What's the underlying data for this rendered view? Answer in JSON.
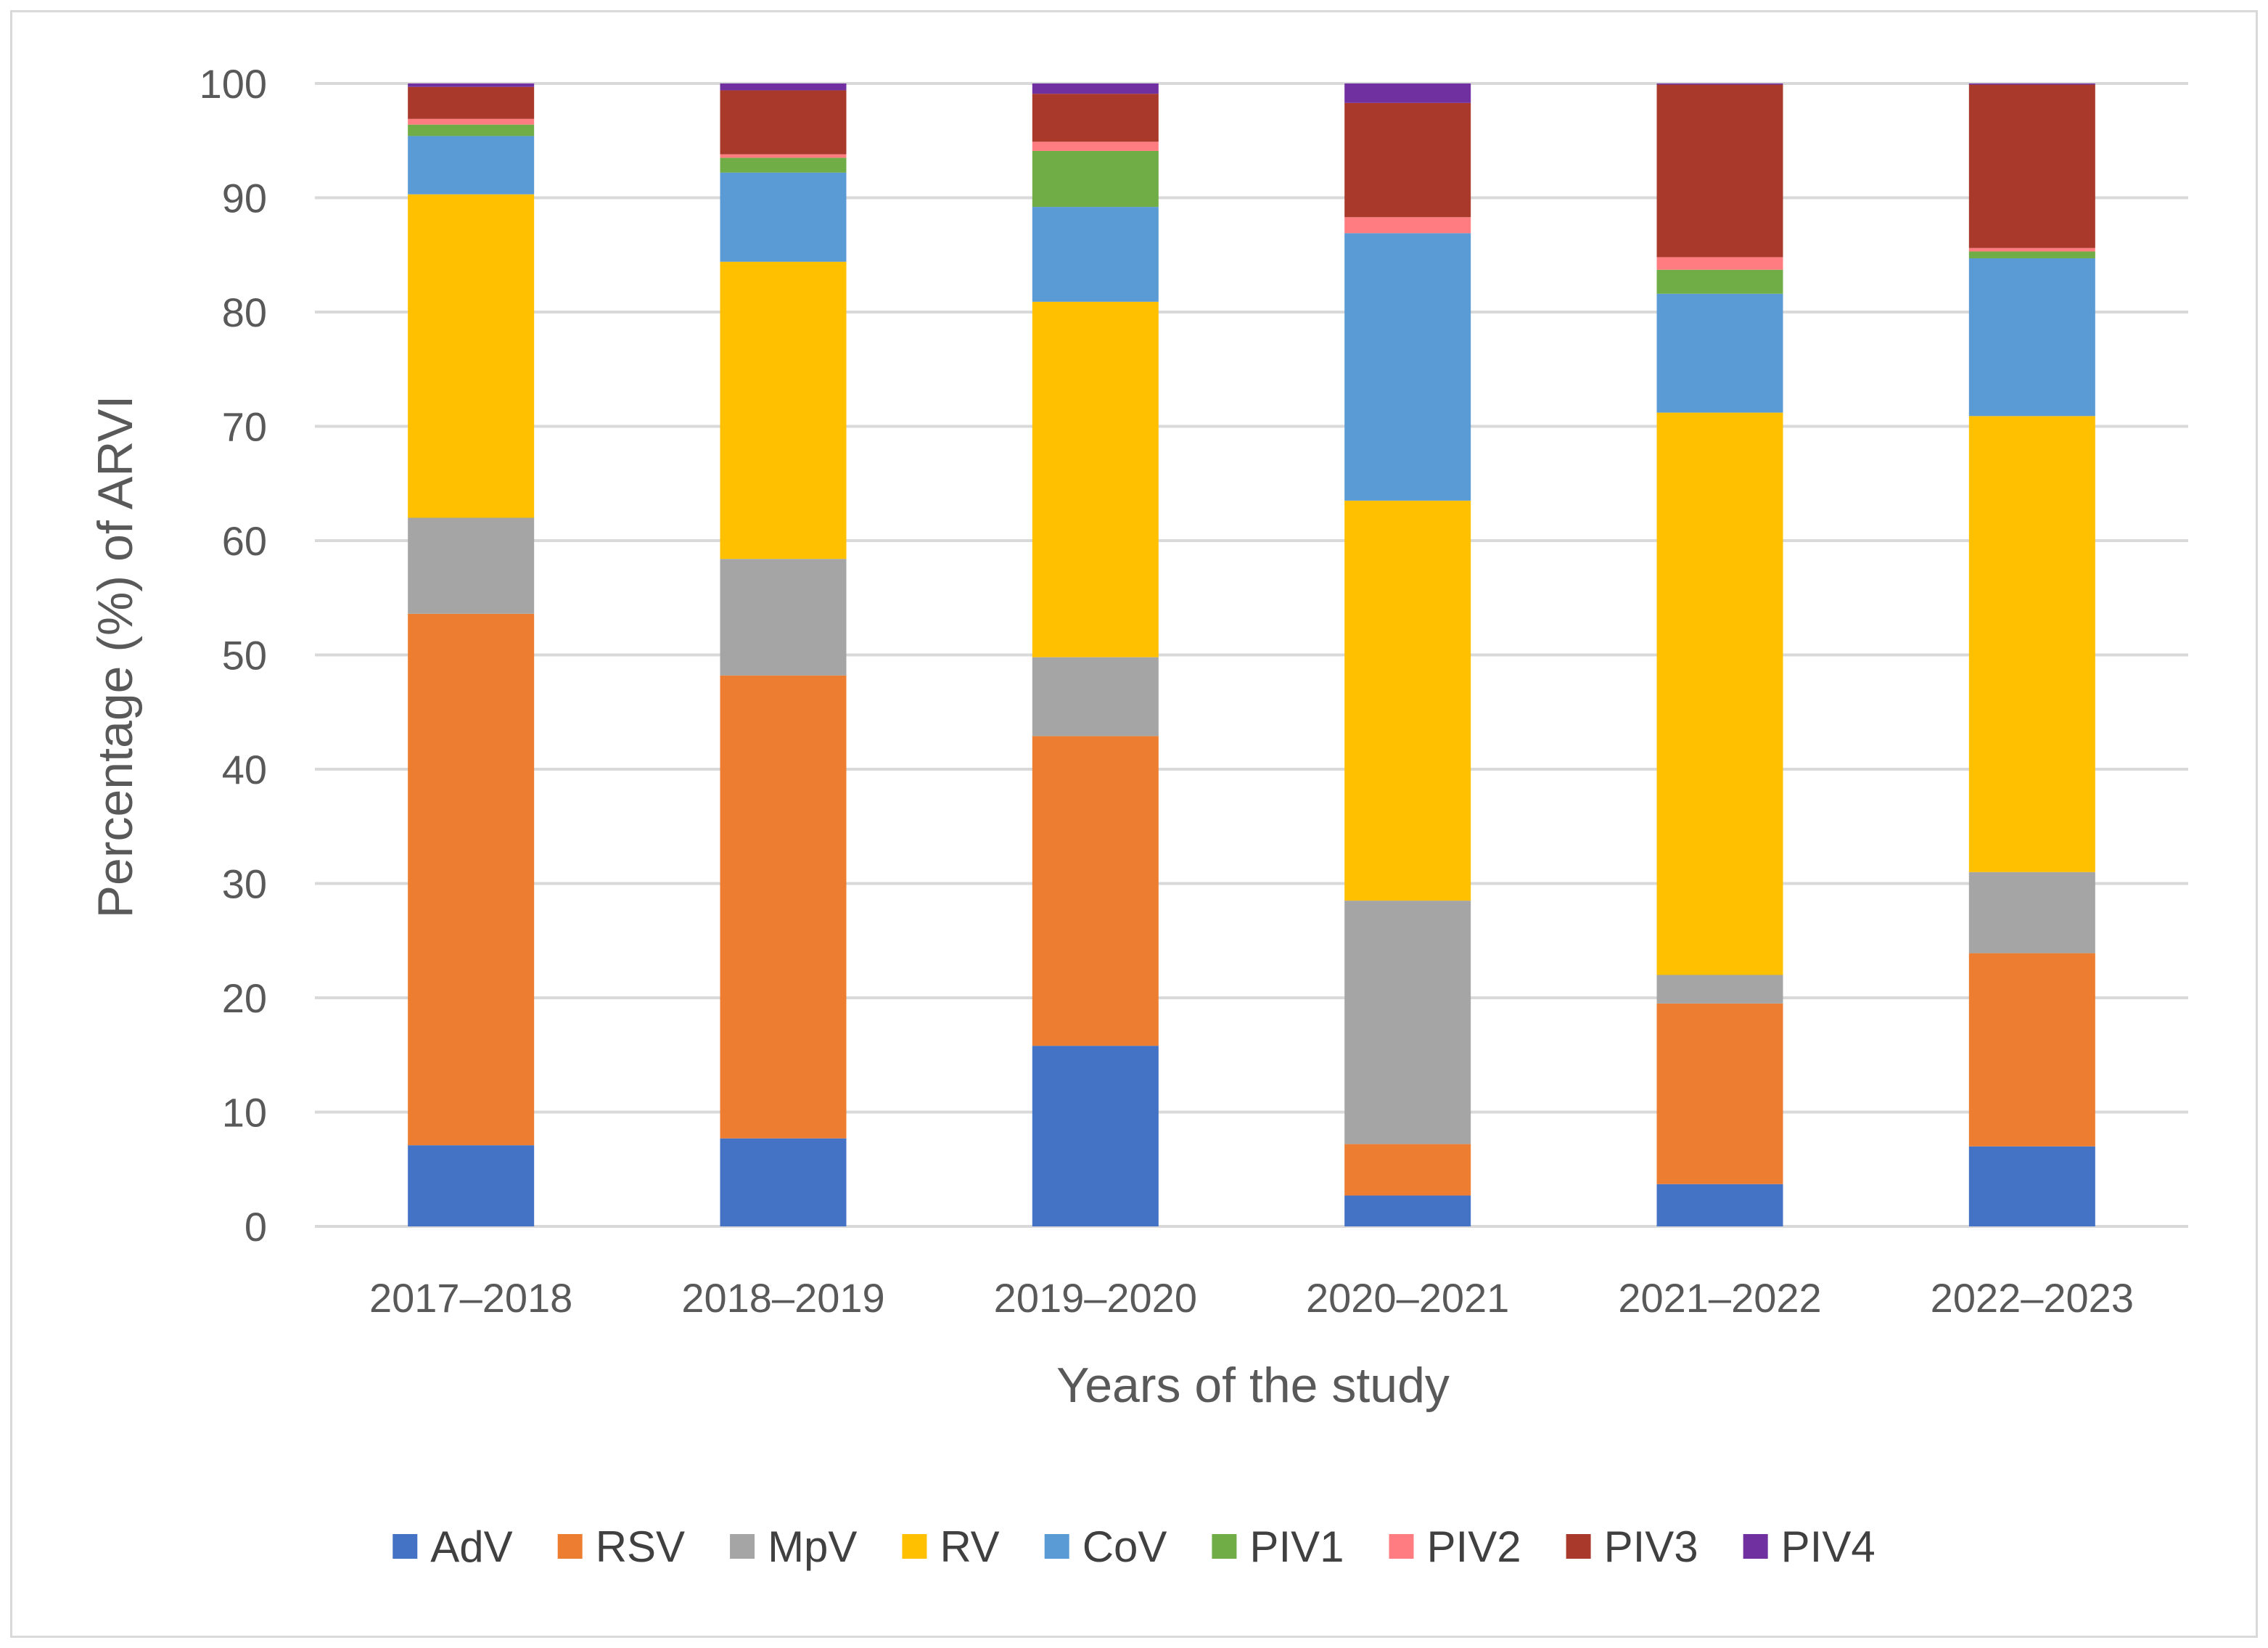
{
  "chart_data": {
    "type": "bar",
    "stacked": true,
    "title": "",
    "xlabel": "Years of the study",
    "ylabel": "Percentage (%) of ARVI",
    "ylim": [
      0,
      100
    ],
    "yticks": [
      0,
      10,
      20,
      30,
      40,
      50,
      60,
      70,
      80,
      90,
      100
    ],
    "yticks_text": [
      "0",
      "10",
      "20",
      "30",
      "40",
      "50",
      "60",
      "70",
      "80",
      "90",
      "100"
    ],
    "grid": true,
    "legend_position": "bottom",
    "categories": [
      "2017–2018",
      "2018–2019",
      "2019–2020",
      "2020–2021",
      "2021–2022",
      "2022–2023"
    ],
    "series": [
      {
        "name": "AdV",
        "color": "#4472C4",
        "values": [
          7.1,
          7.7,
          15.8,
          2.7,
          3.7,
          7.0
        ]
      },
      {
        "name": "RSV",
        "color": "#ED7D31",
        "values": [
          46.5,
          40.5,
          27.1,
          4.5,
          15.8,
          16.9
        ]
      },
      {
        "name": "MpV",
        "color": "#A5A5A5",
        "values": [
          8.4,
          10.2,
          6.9,
          21.3,
          2.5,
          7.1
        ]
      },
      {
        "name": "RV",
        "color": "#FFC000",
        "values": [
          28.3,
          26.0,
          31.1,
          35.0,
          49.2,
          39.9
        ]
      },
      {
        "name": "CoV",
        "color": "#5B9BD5",
        "values": [
          5.1,
          7.8,
          8.3,
          23.4,
          10.4,
          13.8
        ]
      },
      {
        "name": "PIV1",
        "color": "#70AD47",
        "values": [
          1.0,
          1.3,
          4.9,
          0.0,
          2.1,
          0.6
        ]
      },
      {
        "name": "PIV2",
        "color": "#FF7C80",
        "values": [
          0.5,
          0.3,
          0.8,
          1.4,
          1.1,
          0.3
        ]
      },
      {
        "name": "PIV3",
        "color": "#A9392A",
        "values": [
          2.8,
          5.6,
          4.2,
          10.0,
          15.1,
          14.3
        ]
      },
      {
        "name": "PIV4",
        "color": "#7030A0",
        "values": [
          0.3,
          0.6,
          0.9,
          1.7,
          0.1,
          0.1
        ]
      }
    ]
  }
}
